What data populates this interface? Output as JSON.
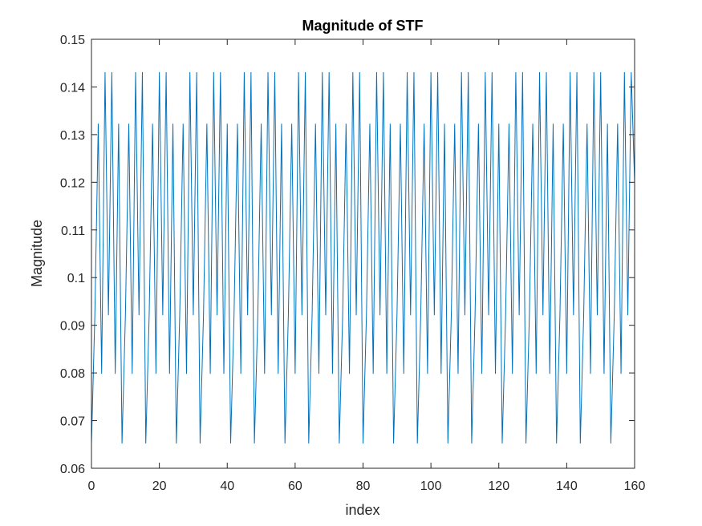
{
  "chart_data": {
    "type": "line",
    "title": "Magnitude of STF",
    "xlabel": "index",
    "ylabel": "Magnitude",
    "xlim": [
      0,
      160
    ],
    "ylim": [
      0.06,
      0.15
    ],
    "xticks": [
      0,
      20,
      40,
      60,
      80,
      100,
      120,
      140,
      160
    ],
    "xtick_labels": [
      "0",
      "20",
      "40",
      "60",
      "80",
      "100",
      "120",
      "140",
      "160"
    ],
    "yticks": [
      0.06,
      0.07,
      0.08,
      0.09,
      0.1,
      0.11,
      0.12,
      0.13,
      0.14,
      0.15
    ],
    "ytick_labels": [
      "0.06",
      "0.07",
      "0.08",
      "0.09",
      "0.1",
      "0.11",
      "0.12",
      "0.13",
      "0.14",
      "0.15"
    ],
    "grid": false,
    "series": [
      {
        "color": "#0072BD",
        "x_start": 0,
        "x_step": 1,
        "period_values": [
          0.0652,
          0.0921,
          0.1323,
          0.0798,
          0.1431,
          0.0921,
          0.1431,
          0.0798,
          0.1323,
          0.0652,
          0.0921,
          0.1323,
          0.0798,
          0.1431,
          0.0921,
          0.1431
        ],
        "repeat_count": 10,
        "last_value": 0.12
      }
    ]
  }
}
